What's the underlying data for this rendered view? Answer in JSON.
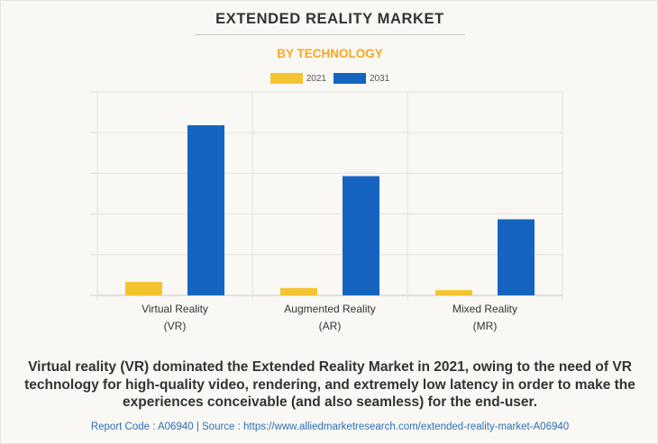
{
  "header": {
    "title": "EXTENDED REALITY MARKET",
    "subtitle": "BY TECHNOLOGY"
  },
  "legend": [
    {
      "label": "2021",
      "color": "#f4c430"
    },
    {
      "label": "2031",
      "color": "#1565c0"
    }
  ],
  "chart_data": {
    "type": "bar",
    "title": "EXTENDED REALITY MARKET",
    "subtitle": "BY TECHNOLOGY",
    "xlabel": "",
    "ylabel": "",
    "categories": [
      [
        "Virtual Reality",
        "(VR)"
      ],
      [
        "Augmented Reality",
        "(AR)"
      ],
      [
        "Mixed Reality",
        "(MR)"
      ]
    ],
    "series": [
      {
        "name": "2021",
        "color": "#f4c430",
        "values": [
          0.33,
          0.18,
          0.13
        ]
      },
      {
        "name": "2031",
        "color": "#1565c0",
        "values": [
          4.18,
          2.93,
          1.87
        ]
      }
    ],
    "ylim": [
      0,
      5
    ],
    "yticks_visible": false,
    "grid": true,
    "legend_position": "top-center"
  },
  "caption": "Virtual reality (VR) dominated the Extended Reality Market in 2021, owing to the need of VR technology for high-quality video, rendering, and extremely low latency in order to make the experiences conceivable (and also seamless) for the end-user.",
  "footer": "Report Code : A06940  |  Source : https://www.alliedmarketresearch.com/extended-reality-market-A06940"
}
